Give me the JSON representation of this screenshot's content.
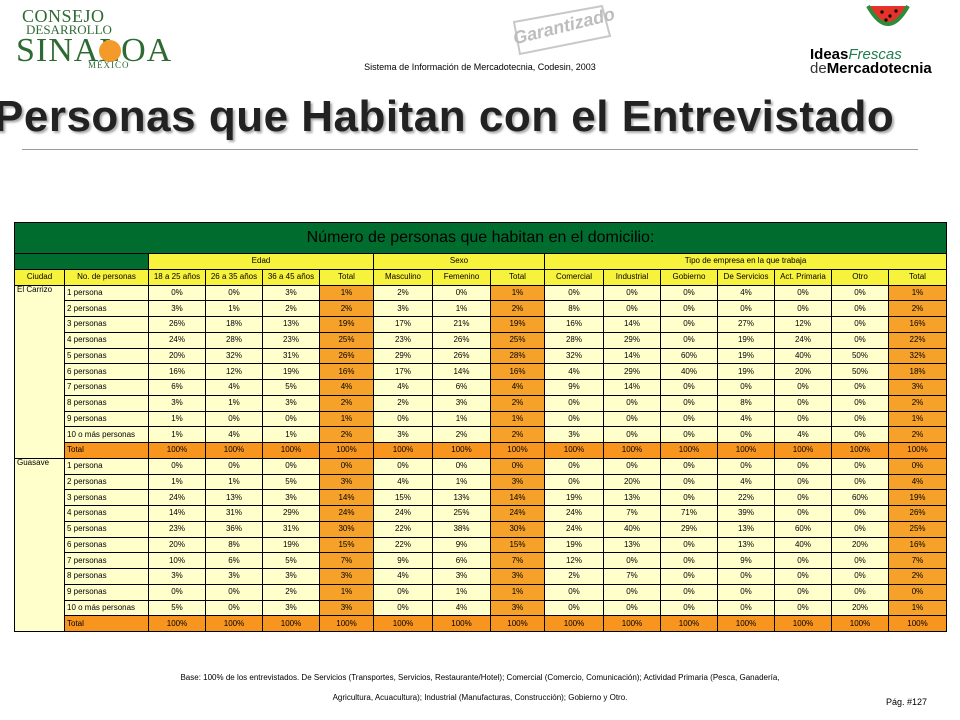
{
  "header": {
    "logo_left": {
      "line1": "CONSEJO",
      "line1b": "PARA EL",
      "line2": "DESARROLLO",
      "line2b": "DE",
      "line3": "SINALOA",
      "line4": "MÉXICO"
    },
    "stamp": "Garantizado",
    "subtitle": "Sistema de Información de Mercadotecnia, Codesin, 2003",
    "logo_right": {
      "ideas": "Ideas",
      "frescas": "Frescas",
      "de": "de",
      "mercadotecnia": "Mercadotecnia"
    }
  },
  "title": "Personas que Habitan con el Entrevistado",
  "table": {
    "title": "Número de personas que habitan en el domicilio:",
    "groups": {
      "edad": "Edad",
      "sexo": "Sexo",
      "tipo": "Tipo de empresa en la que trabaja"
    },
    "columns": [
      "Ciudad",
      "No. de personas",
      "18 a 25 años",
      "26 a 35 años",
      "36 a 45 años",
      "Total",
      "Masculino",
      "Femenino",
      "Total",
      "Comercial",
      "Industrial",
      "Gobierno",
      "De Servicios",
      "Act. Primaria",
      "Otro",
      "Total"
    ],
    "cities": [
      {
        "name": "El Carrizo",
        "rows": [
          {
            "label": "1 persona",
            "values": [
              "0%",
              "0%",
              "3%",
              "1%",
              "2%",
              "0%",
              "1%",
              "0%",
              "0%",
              "0%",
              "4%",
              "0%",
              "0%",
              "1%"
            ]
          },
          {
            "label": "2 personas",
            "values": [
              "3%",
              "1%",
              "2%",
              "2%",
              "3%",
              "1%",
              "2%",
              "8%",
              "0%",
              "0%",
              "0%",
              "0%",
              "0%",
              "2%"
            ]
          },
          {
            "label": "3 personas",
            "values": [
              "26%",
              "18%",
              "13%",
              "19%",
              "17%",
              "21%",
              "19%",
              "16%",
              "14%",
              "0%",
              "27%",
              "12%",
              "0%",
              "16%"
            ]
          },
          {
            "label": "4 personas",
            "values": [
              "24%",
              "28%",
              "23%",
              "25%",
              "23%",
              "26%",
              "25%",
              "28%",
              "29%",
              "0%",
              "19%",
              "24%",
              "0%",
              "22%"
            ]
          },
          {
            "label": "5 personas",
            "values": [
              "20%",
              "32%",
              "31%",
              "26%",
              "29%",
              "26%",
              "28%",
              "32%",
              "14%",
              "60%",
              "19%",
              "40%",
              "50%",
              "32%"
            ]
          },
          {
            "label": "6 personas",
            "values": [
              "16%",
              "12%",
              "19%",
              "16%",
              "17%",
              "14%",
              "16%",
              "4%",
              "29%",
              "40%",
              "19%",
              "20%",
              "50%",
              "18%"
            ]
          },
          {
            "label": "7 personas",
            "values": [
              "6%",
              "4%",
              "5%",
              "4%",
              "4%",
              "6%",
              "4%",
              "9%",
              "14%",
              "0%",
              "0%",
              "0%",
              "0%",
              "3%"
            ]
          },
          {
            "label": "8 personas",
            "values": [
              "3%",
              "1%",
              "3%",
              "2%",
              "2%",
              "3%",
              "2%",
              "0%",
              "0%",
              "0%",
              "8%",
              "0%",
              "0%",
              "2%"
            ]
          },
          {
            "label": "9 personas",
            "values": [
              "1%",
              "0%",
              "0%",
              "1%",
              "0%",
              "1%",
              "1%",
              "0%",
              "0%",
              "0%",
              "4%",
              "0%",
              "0%",
              "1%"
            ]
          },
          {
            "label": "10 o más personas",
            "values": [
              "1%",
              "4%",
              "1%",
              "2%",
              "3%",
              "2%",
              "2%",
              "3%",
              "0%",
              "0%",
              "0%",
              "4%",
              "0%",
              "2%"
            ]
          },
          {
            "label": "Total",
            "values": [
              "100%",
              "100%",
              "100%",
              "100%",
              "100%",
              "100%",
              "100%",
              "100%",
              "100%",
              "100%",
              "100%",
              "100%",
              "100%",
              "100%"
            ]
          }
        ]
      },
      {
        "name": "Guasave",
        "rows": [
          {
            "label": "1 persona",
            "values": [
              "0%",
              "0%",
              "0%",
              "0%",
              "0%",
              "0%",
              "0%",
              "0%",
              "0%",
              "0%",
              "0%",
              "0%",
              "0%",
              "0%"
            ]
          },
          {
            "label": "2 personas",
            "values": [
              "1%",
              "1%",
              "5%",
              "3%",
              "4%",
              "1%",
              "3%",
              "0%",
              "20%",
              "0%",
              "4%",
              "0%",
              "0%",
              "4%"
            ]
          },
          {
            "label": "3 personas",
            "values": [
              "24%",
              "13%",
              "3%",
              "14%",
              "15%",
              "13%",
              "14%",
              "19%",
              "13%",
              "0%",
              "22%",
              "0%",
              "60%",
              "19%"
            ]
          },
          {
            "label": "4 personas",
            "values": [
              "14%",
              "31%",
              "29%",
              "24%",
              "24%",
              "25%",
              "24%",
              "24%",
              "7%",
              "71%",
              "39%",
              "0%",
              "0%",
              "26%"
            ]
          },
          {
            "label": "5 personas",
            "values": [
              "23%",
              "36%",
              "31%",
              "30%",
              "22%",
              "38%",
              "30%",
              "24%",
              "40%",
              "29%",
              "13%",
              "60%",
              "0%",
              "25%"
            ]
          },
          {
            "label": "6 personas",
            "values": [
              "20%",
              "8%",
              "19%",
              "15%",
              "22%",
              "9%",
              "15%",
              "19%",
              "13%",
              "0%",
              "13%",
              "40%",
              "20%",
              "16%"
            ]
          },
          {
            "label": "7 personas",
            "values": [
              "10%",
              "6%",
              "5%",
              "7%",
              "9%",
              "6%",
              "7%",
              "12%",
              "0%",
              "0%",
              "9%",
              "0%",
              "0%",
              "7%"
            ]
          },
          {
            "label": "8 personas",
            "values": [
              "3%",
              "3%",
              "3%",
              "3%",
              "4%",
              "3%",
              "3%",
              "2%",
              "7%",
              "0%",
              "0%",
              "0%",
              "0%",
              "2%"
            ]
          },
          {
            "label": "9 personas",
            "values": [
              "0%",
              "0%",
              "2%",
              "1%",
              "0%",
              "1%",
              "1%",
              "0%",
              "0%",
              "0%",
              "0%",
              "0%",
              "0%",
              "0%"
            ]
          },
          {
            "label": "10 o más personas",
            "values": [
              "5%",
              "0%",
              "3%",
              "3%",
              "0%",
              "4%",
              "3%",
              "0%",
              "0%",
              "0%",
              "0%",
              "0%",
              "20%",
              "1%"
            ]
          },
          {
            "label": "Total",
            "values": [
              "100%",
              "100%",
              "100%",
              "100%",
              "100%",
              "100%",
              "100%",
              "100%",
              "100%",
              "100%",
              "100%",
              "100%",
              "100%",
              "100%"
            ]
          }
        ]
      }
    ]
  },
  "footnote": {
    "line1": "Base: 100% de los entrevistados. De Servicios (Transportes, Servicios, Restaurante/Hotel); Comercial (Comercio, Comunicación); Actividad Primaria (Pesca, Ganadería,",
    "line2": "Agricultura, Acuacultura); Industrial (Manufacturas, Construcción); Gobierno y Otro."
  },
  "page": "Pág. #127",
  "colors": {
    "dark_green": "#006d2f",
    "header_yellow": "#f7f23c",
    "cell_light": "#ffffcc",
    "total_orange": "#f5a12a"
  }
}
